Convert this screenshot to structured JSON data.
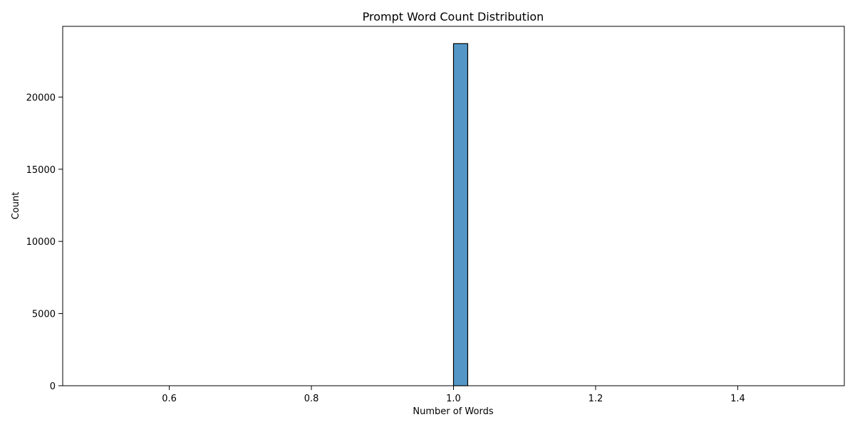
{
  "chart_data": {
    "type": "bar",
    "title": "Prompt Word Count Distribution",
    "xlabel": "Number of Words",
    "ylabel": "Count",
    "xlim": [
      0.45,
      1.55
    ],
    "ylim": [
      0,
      24900
    ],
    "x_ticks": [
      0.6,
      0.8,
      1.0,
      1.2,
      1.4
    ],
    "x_tick_labels": [
      "0.6",
      "0.8",
      "1.0",
      "1.2",
      "1.4"
    ],
    "y_ticks": [
      0,
      5000,
      10000,
      15000,
      20000
    ],
    "y_tick_labels": [
      "0",
      "5000",
      "10000",
      "15000",
      "20000"
    ],
    "bins": {
      "start": 0.5,
      "end": 1.5,
      "width": 0.02
    },
    "series": [
      {
        "values": [
          {
            "x0": 1.0,
            "x1": 1.02,
            "count": 23700
          }
        ]
      }
    ],
    "bar_color": "#5497c7",
    "bar_edge_color": "#000000",
    "grid": false,
    "legend": "none"
  }
}
